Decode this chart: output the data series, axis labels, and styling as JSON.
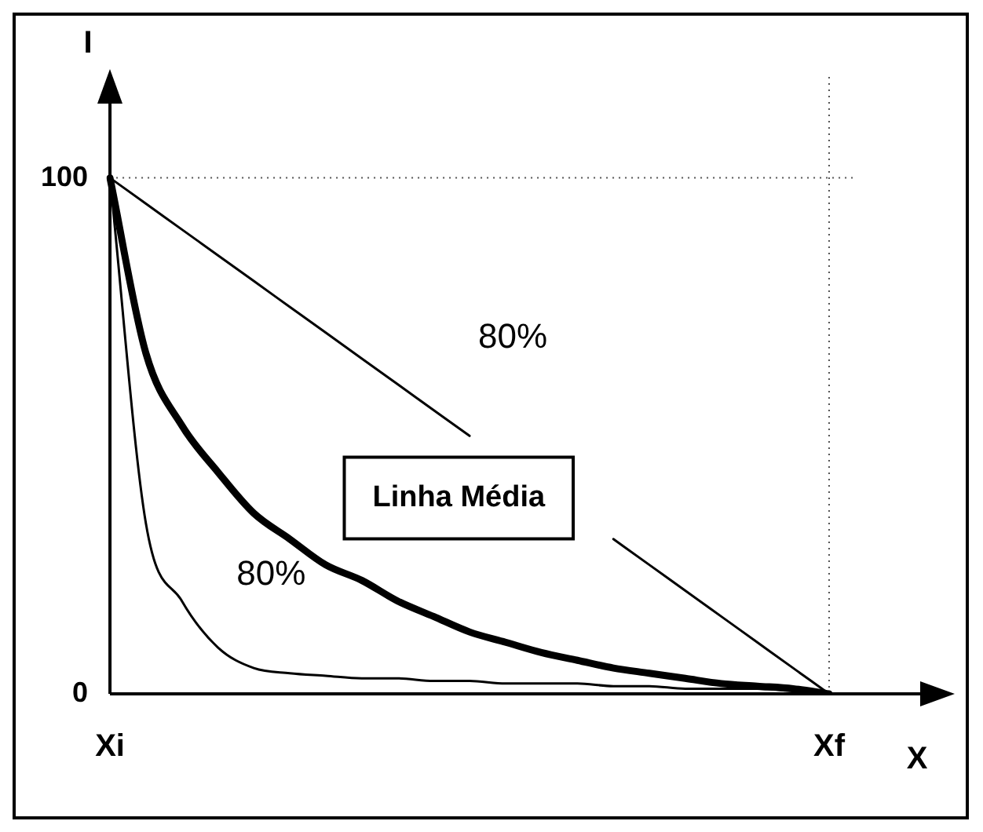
{
  "chart_data": {
    "type": "line",
    "xlabel": "X",
    "ylabel": "I",
    "categories": [
      "Xi",
      null,
      null,
      null,
      null,
      null,
      null,
      null,
      null,
      null,
      null,
      null,
      null,
      null,
      null,
      null,
      null,
      null,
      null,
      null,
      "Xf"
    ],
    "ylim": [
      0,
      115
    ],
    "yticks": [
      0,
      100
    ],
    "grid": false,
    "legend": false,
    "marker": "none",
    "line_style": "solid",
    "series": [
      {
        "color": "#000000",
        "values": [
          100,
          95,
          90,
          85,
          80,
          75,
          70,
          65,
          60,
          55,
          50,
          null,
          null,
          null,
          30,
          25,
          20,
          15,
          10,
          5,
          0
        ]
      },
      {
        "color": "#000000",
        "values": [
          100,
          66,
          52,
          43,
          35,
          30,
          25,
          22,
          18,
          15,
          12,
          10,
          8,
          6.5,
          5,
          4,
          3,
          2,
          1.5,
          1,
          0
        ]
      },
      {
        "color": "#000000",
        "values": [
          100,
          33,
          18,
          9,
          5,
          4,
          3.5,
          3,
          3,
          2.5,
          2.5,
          2,
          2,
          2,
          1.5,
          1.5,
          1,
          1,
          1,
          0.5,
          0
        ]
      }
    ],
    "ref_lines": [
      {
        "axis": "y",
        "value": 100,
        "color": "#555555",
        "line_style": "dotted"
      },
      {
        "axis": "x",
        "value": "Xf",
        "color": "#555555",
        "line_style": "dotted"
      }
    ],
    "annotations": [
      "80%",
      "80%",
      "Linha Média"
    ]
  }
}
